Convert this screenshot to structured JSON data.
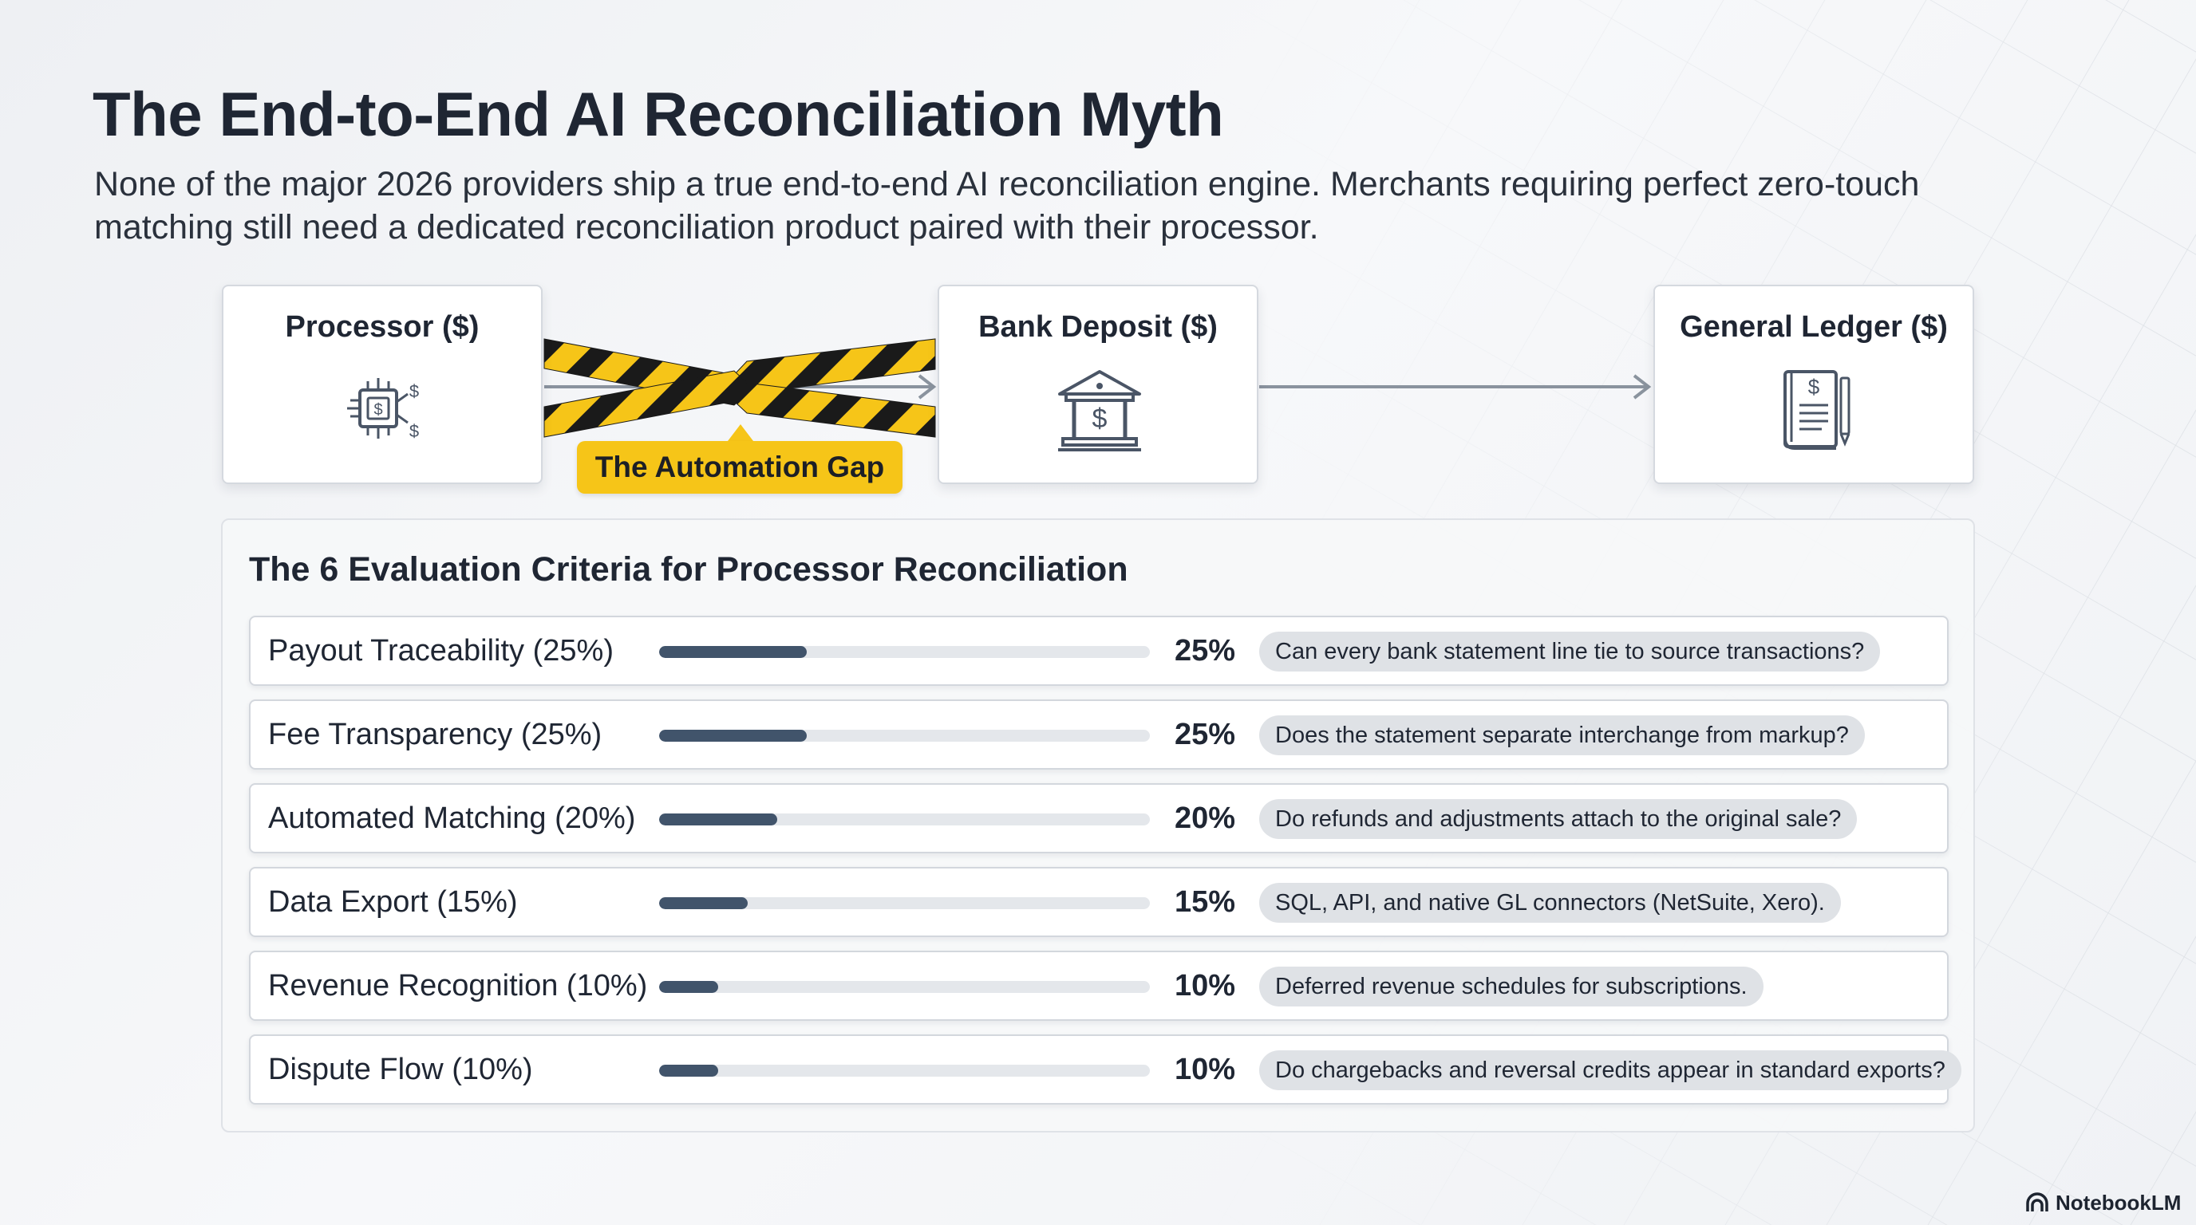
{
  "header": {
    "title": "The End-to-End AI Reconciliation Myth",
    "subtitle": "None of the major 2026 providers ship a true end-to-end AI reconciliation engine. Merchants requiring perfect zero-touch matching still need a dedicated reconciliation product paired with their processor."
  },
  "flow": {
    "nodes": [
      {
        "label": "Processor ($)",
        "icon": "chip-dollar-icon"
      },
      {
        "label": "Bank Deposit ($)",
        "icon": "bank-icon"
      },
      {
        "label": "General Ledger ($)",
        "icon": "ledger-book-icon"
      }
    ],
    "gap_label": "The Automation Gap",
    "colors": {
      "caution_yellow": "#f6c518",
      "caution_black": "#1a1a1a",
      "arrow": "#8a939e"
    }
  },
  "criteria": {
    "title": "The 6 Evaluation Criteria for Processor Reconciliation",
    "bar_color": "#41546b",
    "track_color": "#e4e7eb",
    "rows": [
      {
        "name": "Payout Traceability (25%)",
        "weight": 25,
        "pct_label": "25%",
        "question": "Can every bank statement line tie to source transactions?"
      },
      {
        "name": "Fee Transparency (25%)",
        "weight": 25,
        "pct_label": "25%",
        "question": "Does the statement separate interchange from markup?"
      },
      {
        "name": "Automated Matching (20%)",
        "weight": 20,
        "pct_label": "20%",
        "question": "Do refunds and adjustments attach to the original sale?"
      },
      {
        "name": "Data Export (15%)",
        "weight": 15,
        "pct_label": "15%",
        "question": "SQL, API, and native GL connectors (NetSuite, Xero)."
      },
      {
        "name": "Revenue Recognition (10%)",
        "weight": 10,
        "pct_label": "10%",
        "question": "Deferred revenue schedules for subscriptions."
      },
      {
        "name": "Dispute Flow (10%)",
        "weight": 10,
        "pct_label": "10%",
        "question": "Do chargebacks and reversal credits appear in standard exports?"
      }
    ]
  },
  "footer": {
    "brand": "NotebookLM",
    "brand_icon": "notebooklm-logo-icon"
  }
}
